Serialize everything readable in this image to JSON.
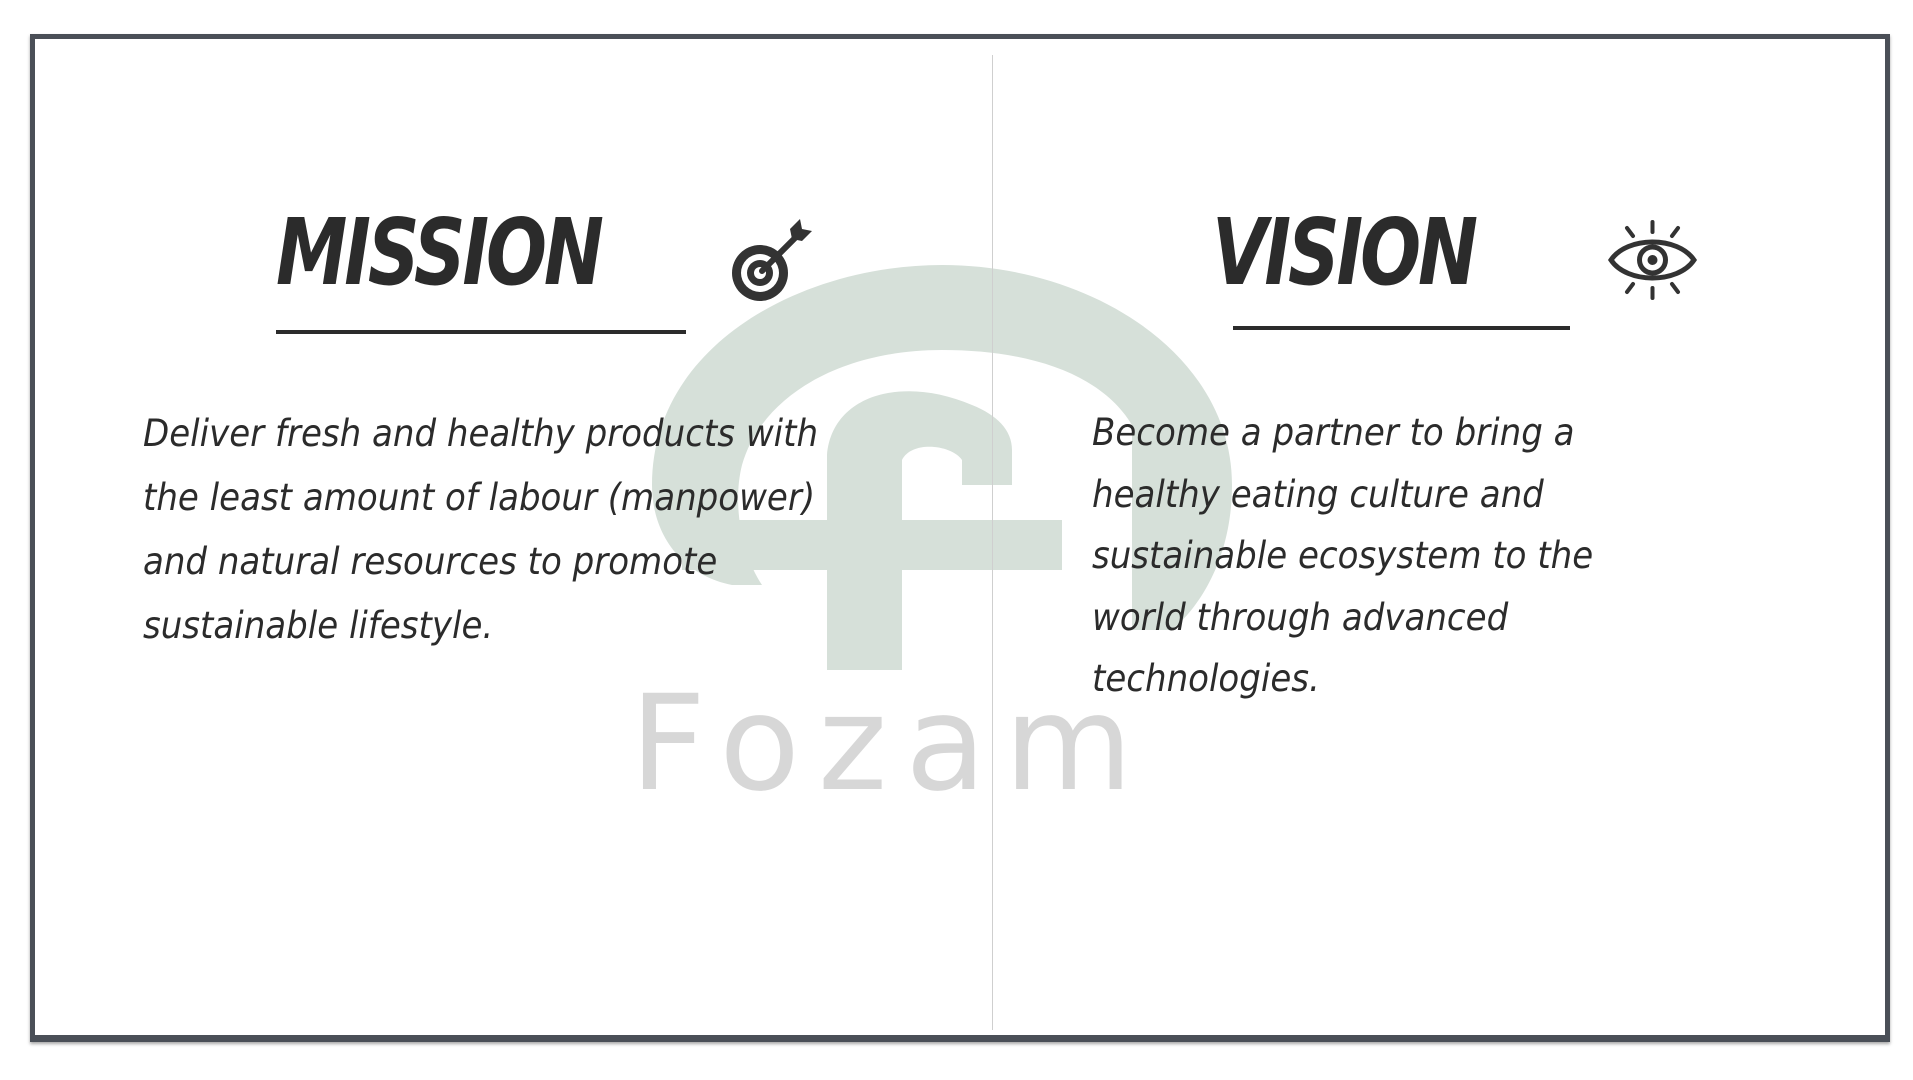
{
  "watermark": {
    "brand_text": "Fozam",
    "logo_color": "#d6e0d9",
    "text_color": "#d7d7d7"
  },
  "mission": {
    "title": "MISSION",
    "icon": "target-arrow-icon",
    "body": "Deliver fresh and healthy products with\nthe least amount of labour (manpower)\nand natural resources to promote\nsustainable lifestyle."
  },
  "vision": {
    "title": "VISION",
    "icon": "eye-icon",
    "body": "Become a partner to bring a\nhealthy eating culture and\nsustainable ecosystem to the\nworld through advanced\ntechnologies."
  },
  "colors": {
    "ink": "#2b2b2b",
    "frame": "#4a4f57",
    "divider": "#cfcfcf"
  }
}
